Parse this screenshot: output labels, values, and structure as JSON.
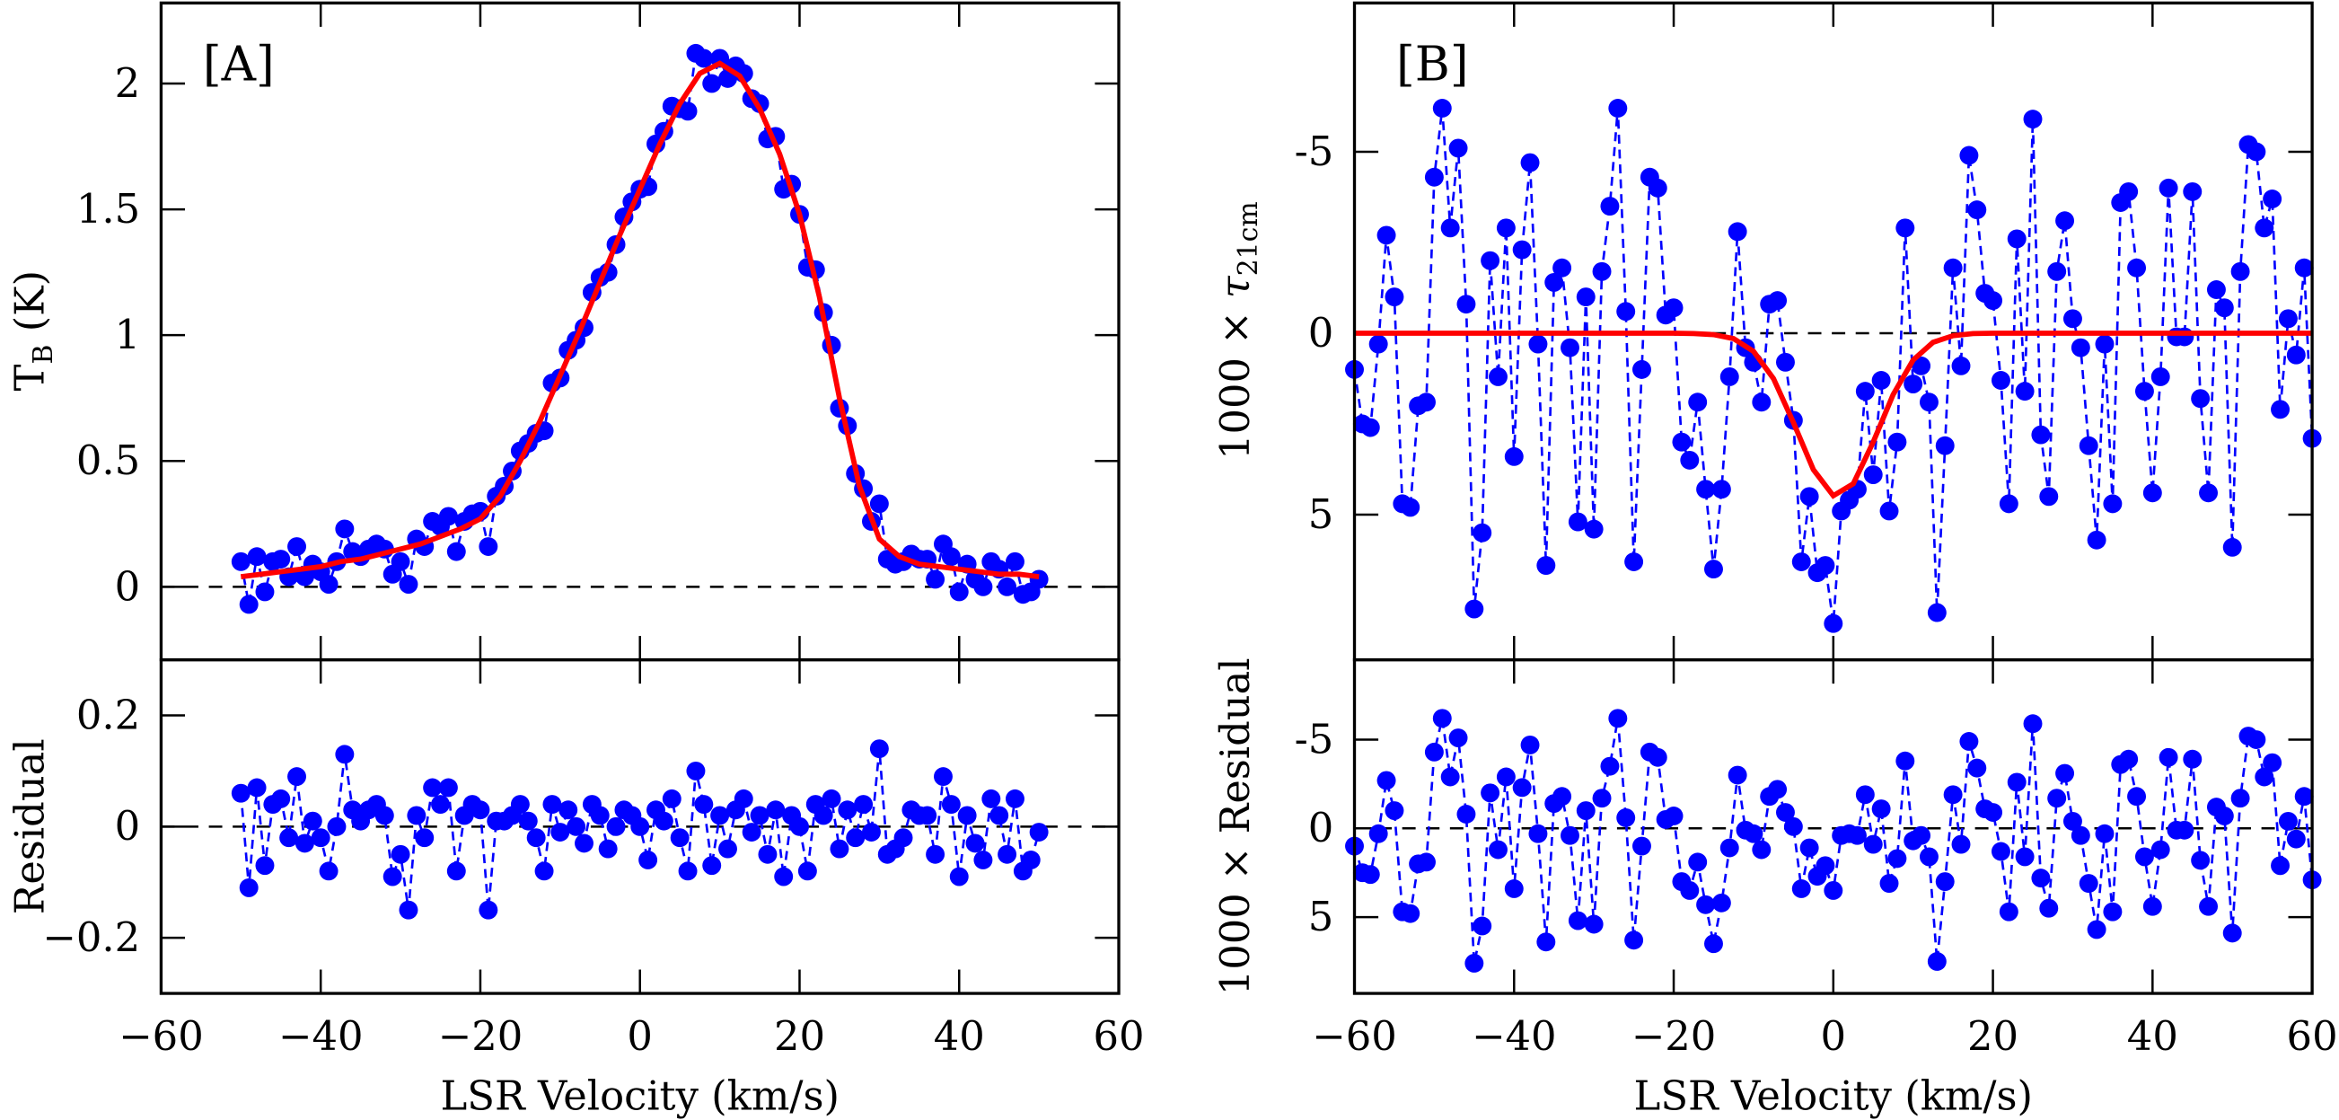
{
  "chart_data": [
    {
      "type": "line",
      "annotation": "[A]",
      "y_label": "T",
      "y_label_sub": "B",
      "y_label_unit": "(K)",
      "xlim": [
        -60,
        60
      ],
      "xticks": [
        -60,
        -40,
        -20,
        0,
        20,
        40,
        60
      ],
      "ylim": [
        -0.29,
        2.32
      ],
      "yticks": [
        0,
        0.5,
        1,
        1.5,
        2
      ],
      "reference_line": 0,
      "x": [
        -50,
        -49,
        -48,
        -47,
        -46,
        -45,
        -44,
        -43,
        -42,
        -41,
        -40,
        -39,
        -38,
        -37,
        -36,
        -35,
        -34,
        -33,
        -32,
        -31,
        -30,
        -29,
        -28,
        -27,
        -26,
        -25,
        -24,
        -23,
        -22,
        -21,
        -20,
        -19,
        -18,
        -17,
        -16,
        -15,
        -14,
        -13,
        -12,
        -11,
        -10,
        -9,
        -8,
        -7,
        -6,
        -5,
        -4,
        -3,
        -2,
        -1,
        0,
        1,
        2,
        3,
        4,
        5,
        6,
        7,
        8,
        9,
        10,
        11,
        12,
        13,
        14,
        15,
        16,
        17,
        18,
        19,
        20,
        21,
        22,
        23,
        24,
        25,
        26,
        27,
        28,
        29,
        30,
        31,
        32,
        33,
        34,
        35,
        36,
        37,
        38,
        39,
        40,
        41,
        42,
        43,
        44,
        45,
        46,
        47,
        48,
        49,
        50
      ],
      "series": [
        {
          "color": "#0000ff",
          "line": "dashed",
          "markers": true,
          "values": [
            0.1,
            -0.07,
            0.12,
            -0.02,
            0.1,
            0.11,
            0.04,
            0.16,
            0.04,
            0.09,
            0.06,
            0.01,
            0.1,
            0.23,
            0.14,
            0.12,
            0.15,
            0.17,
            0.15,
            0.05,
            0.1,
            0.01,
            0.19,
            0.16,
            0.26,
            0.24,
            0.28,
            0.14,
            0.26,
            0.29,
            0.3,
            0.16,
            0.36,
            0.4,
            0.46,
            0.54,
            0.57,
            0.61,
            0.62,
            0.81,
            0.83,
            0.94,
            0.98,
            1.03,
            1.17,
            1.23,
            1.25,
            1.36,
            1.47,
            1.53,
            1.58,
            1.59,
            1.76,
            1.81,
            1.91,
            1.9,
            1.89,
            2.12,
            2.1,
            2.0,
            2.1,
            2.02,
            2.07,
            2.04,
            1.94,
            1.92,
            1.78,
            1.79,
            1.58,
            1.6,
            1.48,
            1.27,
            1.26,
            1.09,
            0.96,
            0.71,
            0.64,
            0.45,
            0.39,
            0.26,
            0.33,
            0.11,
            0.09,
            0.1,
            0.13,
            0.11,
            0.11,
            0.03,
            0.17,
            0.12,
            -0.02,
            0.09,
            0.03,
            0.0,
            0.1,
            0.07,
            0.0,
            0.1,
            -0.03,
            -0.02,
            0.03
          ]
        },
        {
          "color": "#ff0000",
          "line": "solid",
          "markers": false,
          "x": [
            -50,
            -47.5,
            -45,
            -42.5,
            -40,
            -37.5,
            -35,
            -32.5,
            -30,
            -27.5,
            -25,
            -22.5,
            -20,
            -17.5,
            -15,
            -12.5,
            -10,
            -7.5,
            -5,
            -2.5,
            0,
            2.5,
            5,
            7.5,
            10,
            12.5,
            15,
            17.5,
            20,
            22.5,
            25,
            27.5,
            30,
            32.5,
            35,
            37.5,
            40,
            42.5,
            45,
            47.5,
            50
          ],
          "values": [
            0.04,
            0.05,
            0.06,
            0.07,
            0.08,
            0.1,
            0.11,
            0.13,
            0.15,
            0.17,
            0.2,
            0.23,
            0.27,
            0.36,
            0.5,
            0.66,
            0.84,
            1.02,
            1.21,
            1.4,
            1.58,
            1.76,
            1.92,
            2.04,
            2.08,
            2.03,
            1.9,
            1.72,
            1.48,
            1.15,
            0.75,
            0.4,
            0.19,
            0.12,
            0.09,
            0.08,
            0.07,
            0.06,
            0.05,
            0.05,
            0.04
          ]
        }
      ]
    },
    {
      "type": "line",
      "y_label": "Residual",
      "x_label": "LSR Velocity (km/s)",
      "xlim": [
        -60,
        60
      ],
      "xticks": [
        {
          "value": -60,
          "label": "−60"
        },
        {
          "value": -40,
          "label": "−40"
        },
        {
          "value": -20,
          "label": "−20"
        },
        0,
        20,
        40,
        60
      ],
      "ylim": [
        -0.3,
        0.3
      ],
      "yticks": [
        {
          "value": -0.2,
          "label": "−0.2"
        },
        0,
        0.2
      ],
      "reference_line": 0,
      "series": [
        {
          "color": "#0000ff",
          "line": "dashed",
          "markers": true,
          "values": [
            0.06,
            -0.11,
            0.07,
            -0.07,
            0.04,
            0.05,
            -0.02,
            0.09,
            -0.03,
            0.01,
            -0.02,
            -0.08,
            0.0,
            0.13,
            0.03,
            0.01,
            0.03,
            0.04,
            0.02,
            -0.09,
            -0.05,
            -0.15,
            0.02,
            -0.02,
            0.07,
            0.04,
            0.07,
            -0.08,
            0.02,
            0.04,
            0.03,
            -0.15,
            0.01,
            0.01,
            0.02,
            0.04,
            0.01,
            -0.02,
            -0.08,
            0.04,
            -0.01,
            0.03,
            0.0,
            -0.03,
            0.04,
            0.02,
            -0.04,
            0.0,
            0.03,
            0.02,
            0.0,
            -0.06,
            0.03,
            0.01,
            0.05,
            -0.02,
            -0.08,
            0.1,
            0.04,
            -0.07,
            0.02,
            -0.04,
            0.03,
            0.05,
            -0.01,
            0.02,
            -0.05,
            0.03,
            -0.09,
            0.02,
            0.0,
            -0.08,
            0.04,
            0.02,
            0.05,
            -0.04,
            0.03,
            -0.02,
            0.04,
            -0.01,
            0.14,
            -0.05,
            -0.04,
            -0.02,
            0.03,
            0.02,
            0.02,
            -0.05,
            0.09,
            0.04,
            -0.09,
            0.02,
            -0.03,
            -0.06,
            0.05,
            0.02,
            -0.05,
            0.05,
            -0.08,
            -0.06,
            -0.01
          ]
        }
      ]
    },
    {
      "type": "line",
      "annotation": "[B]",
      "y_label": "1000 ×",
      "y_label_symbol": "τ",
      "y_label_sub": "21cm",
      "xlim": [
        -60,
        60
      ],
      "xticks": [
        -60,
        -40,
        -20,
        0,
        20,
        40,
        60
      ],
      "ylim": [
        9,
        -9.1
      ],
      "yticks": [
        -5,
        0,
        5
      ],
      "reference_line": 0,
      "x": [
        -60,
        -59,
        -58,
        -57,
        -56,
        -55,
        -54,
        -53,
        -52,
        -51,
        -50,
        -49,
        -48,
        -47,
        -46,
        -45,
        -44,
        -43,
        -42,
        -41,
        -40,
        -39,
        -38,
        -37,
        -36,
        -35,
        -34,
        -33,
        -32,
        -31,
        -30,
        -29,
        -28,
        -27,
        -26,
        -25,
        -24,
        -23,
        -22,
        -21,
        -20,
        -19,
        -18,
        -17,
        -16,
        -15,
        -14,
        -13,
        -12,
        -11,
        -10,
        -9,
        -8,
        -7,
        -6,
        -5,
        -4,
        -3,
        -2,
        -1,
        0,
        1,
        2,
        3,
        4,
        5,
        6,
        7,
        8,
        9,
        10,
        11,
        12,
        13,
        14,
        15,
        16,
        17,
        18,
        19,
        20,
        21,
        22,
        23,
        24,
        25,
        26,
        27,
        28,
        29,
        30,
        31,
        32,
        33,
        34,
        35,
        36,
        37,
        38,
        39,
        40,
        41,
        42,
        43,
        44,
        45,
        46,
        47,
        48,
        49,
        50,
        51,
        52,
        53,
        54,
        55,
        56,
        57,
        58,
        59,
        60
      ],
      "series": [
        {
          "color": "#0000ff",
          "line": "dashed",
          "markers": true,
          "values": [
            1.0,
            2.5,
            2.6,
            0.3,
            -2.7,
            -1.0,
            4.7,
            4.8,
            2.0,
            1.9,
            -4.3,
            -6.2,
            -2.9,
            -5.1,
            -0.8,
            7.6,
            5.5,
            -2.0,
            1.2,
            -2.9,
            3.4,
            -2.3,
            -4.7,
            0.3,
            6.4,
            -1.4,
            -1.8,
            0.4,
            5.2,
            -1.0,
            5.4,
            -1.7,
            -3.5,
            -6.2,
            -0.6,
            6.3,
            1.0,
            -4.3,
            -4.0,
            -0.5,
            -0.7,
            3.0,
            3.5,
            1.9,
            4.3,
            6.5,
            4.3,
            1.2,
            -2.8,
            0.4,
            0.8,
            1.9,
            -0.8,
            -0.9,
            0.8,
            2.4,
            6.3,
            4.5,
            6.6,
            6.4,
            8.0,
            4.9,
            4.6,
            4.3,
            1.6,
            3.9,
            1.3,
            4.9,
            3.0,
            -2.9,
            1.4,
            0.9,
            1.9,
            7.7,
            3.1,
            -1.8,
            0.9,
            -4.9,
            -3.4,
            -1.1,
            -0.9,
            1.3,
            4.7,
            -2.6,
            1.6,
            -5.9,
            2.8,
            4.5,
            -1.7,
            -3.1,
            -0.4,
            0.4,
            3.1,
            5.7,
            0.3,
            4.7,
            -3.6,
            -3.9,
            -1.8,
            1.6,
            4.4,
            1.2,
            -4.0,
            0.1,
            0.1,
            -3.9,
            1.8,
            4.4,
            -1.2,
            -0.7,
            5.9,
            -1.7,
            -5.2,
            -5.0,
            -2.9,
            -3.7,
            2.1,
            -0.4,
            0.6,
            -1.8,
            2.9
          ]
        },
        {
          "color": "#ff0000",
          "line": "solid",
          "markers": false,
          "x": [
            -60,
            -57.5,
            -55,
            -52.5,
            -50,
            -47.5,
            -45,
            -42.5,
            -40,
            -37.5,
            -35,
            -32.5,
            -30,
            -27.5,
            -25,
            -22.5,
            -20,
            -17.5,
            -15,
            -12.5,
            -10,
            -7.5,
            -5,
            -2.5,
            0,
            2.5,
            5,
            7.5,
            10,
            12.5,
            15,
            17.5,
            20,
            22.5,
            25,
            27.5,
            30,
            32.5,
            35,
            37.5,
            40,
            42.5,
            45,
            47.5,
            50,
            52.5,
            55,
            57.5,
            60
          ],
          "values": [
            0,
            0,
            0,
            0,
            0,
            0,
            0,
            0,
            0,
            0,
            0,
            0,
            0,
            0,
            0,
            0,
            0,
            0.01,
            0.04,
            0.15,
            0.5,
            1.25,
            2.46,
            3.76,
            4.48,
            4.15,
            3.0,
            1.69,
            0.74,
            0.25,
            0.07,
            0.01,
            0,
            0,
            0,
            0,
            0,
            0,
            0,
            0,
            0,
            0,
            0,
            0,
            0,
            0,
            0,
            0,
            0
          ]
        }
      ]
    },
    {
      "type": "line",
      "y_label": "1000 × Residual",
      "x_label": "LSR Velocity (km/s)",
      "xlim": [
        -60,
        60
      ],
      "xticks": [
        {
          "value": -60,
          "label": "−60"
        },
        {
          "value": -40,
          "label": "−40"
        },
        {
          "value": -20,
          "label": "−20"
        },
        0,
        20,
        40,
        60
      ],
      "ylim": [
        9.3,
        -9.5
      ],
      "yticks": [
        -5,
        0,
        5
      ],
      "reference_line": 0,
      "series": [
        {
          "color": "#0000ff",
          "line": "dashed",
          "markers": true,
          "values": [
            1.0,
            2.5,
            2.6,
            0.3,
            -2.7,
            -1.0,
            4.7,
            4.8,
            2.0,
            1.9,
            -4.3,
            -6.2,
            -2.9,
            -5.1,
            -0.8,
            7.6,
            5.5,
            -2.0,
            1.2,
            -2.9,
            3.4,
            -2.3,
            -4.7,
            0.3,
            6.4,
            -1.4,
            -1.8,
            0.4,
            5.2,
            -1.0,
            5.4,
            -1.7,
            -3.5,
            -6.2,
            -0.6,
            6.3,
            1.0,
            -4.3,
            -4.0,
            -0.5,
            -0.7,
            3.0,
            3.5,
            1.9,
            4.3,
            6.5,
            4.2,
            1.1,
            -3.0,
            0.1,
            0.3,
            1.2,
            -1.8,
            -2.2,
            -0.9,
            -0.1,
            3.4,
            1.1,
            2.7,
            2.1,
            3.5,
            0.4,
            0.3,
            0.4,
            -1.9,
            0.9,
            -1.1,
            3.1,
            1.7,
            -3.8,
            0.7,
            0.4,
            1.6,
            7.5,
            3.0,
            -1.9,
            0.9,
            -4.9,
            -3.4,
            -1.1,
            -0.9,
            1.3,
            4.7,
            -2.6,
            1.6,
            -5.9,
            2.8,
            4.5,
            -1.7,
            -3.1,
            -0.4,
            0.4,
            3.1,
            5.7,
            0.3,
            4.7,
            -3.6,
            -3.9,
            -1.8,
            1.6,
            4.4,
            1.2,
            -4.0,
            0.1,
            0.1,
            -3.9,
            1.8,
            4.4,
            -1.2,
            -0.7,
            5.9,
            -1.7,
            -5.2,
            -5.0,
            -2.9,
            -3.7,
            2.1,
            -0.4,
            0.6,
            -1.8,
            2.9
          ]
        }
      ]
    }
  ]
}
